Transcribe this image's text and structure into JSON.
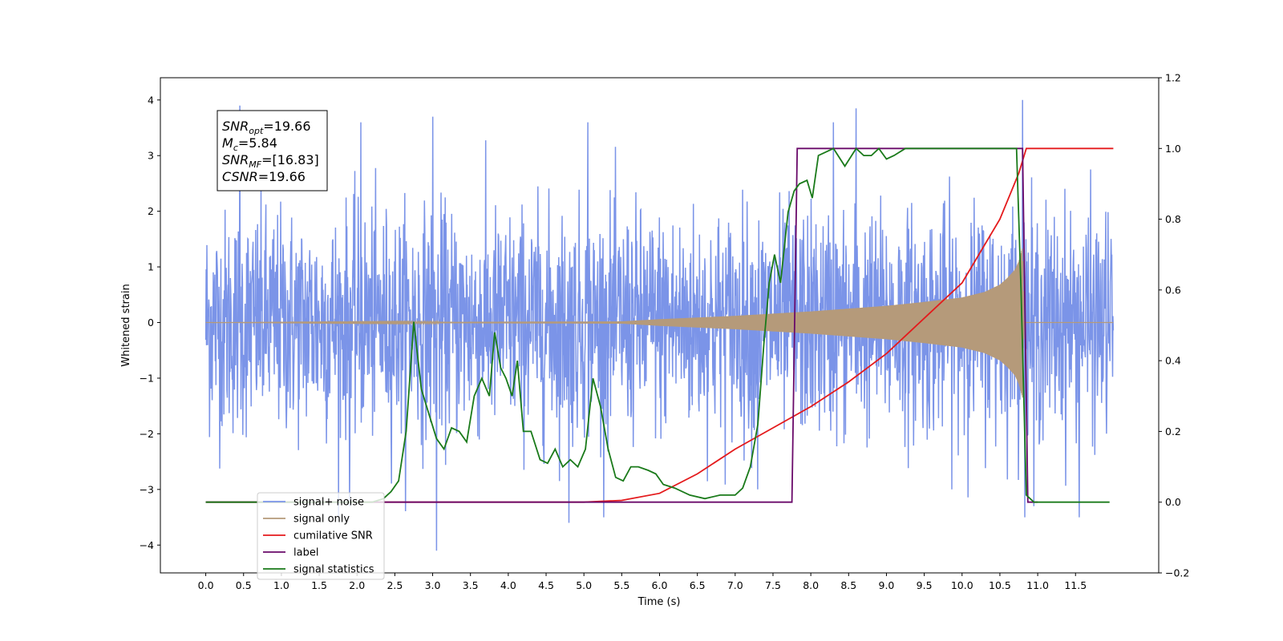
{
  "chart_data": {
    "type": "line",
    "title": "",
    "xlabel": "Time (s)",
    "ylabel": "Whitened strain",
    "xlim": [
      -0.6,
      12.6
    ],
    "ylim": [
      -4.5,
      4.4
    ],
    "y2lim": [
      -0.2,
      1.2
    ],
    "x_ticks": [
      "0.0",
      "0.5",
      "1.0",
      "1.5",
      "2.0",
      "2.5",
      "3.0",
      "3.5",
      "4.0",
      "4.5",
      "5.0",
      "5.5",
      "6.0",
      "6.5",
      "7.0",
      "7.5",
      "8.0",
      "8.5",
      "9.0",
      "9.5",
      "10.0",
      "10.5",
      "11.0",
      "11.5"
    ],
    "y_ticks": [
      "4",
      "3",
      "2",
      "1",
      "0",
      "−1",
      "−2",
      "−3",
      "−4"
    ],
    "y2_ticks": [
      "1.2",
      "1.0",
      "0.8",
      "0.6",
      "0.4",
      "0.2",
      "0.0",
      "−0.2"
    ],
    "grid": false,
    "legend_position": "lower-left",
    "annotation": {
      "lines": [
        {
          "main": "SNR",
          "sub": "opt",
          "rest": "=19.66"
        },
        {
          "main": "M",
          "sub": "c",
          "rest": "=5.84"
        },
        {
          "main": "SNR",
          "sub": "MF",
          "rest": "=[16.83]"
        },
        {
          "main": "CSNR",
          "sub": "",
          "rest": "=19.66"
        }
      ]
    },
    "series": [
      {
        "name": "signal+ noise",
        "axis": "left",
        "color": "#7b94e8",
        "style": "noise",
        "x_range": [
          0,
          12
        ],
        "noise_sigma": 1.0,
        "outliers": [
          [
            0.45,
            3.9
          ],
          [
            2.05,
            3.6
          ],
          [
            3.0,
            3.7
          ],
          [
            3.05,
            -4.1
          ],
          [
            4.8,
            -3.6
          ],
          [
            5.05,
            3.6
          ],
          [
            8.3,
            3.6
          ],
          [
            8.6,
            3.85
          ],
          [
            10.8,
            4.0
          ],
          [
            10.95,
            -3.3
          ],
          [
            11.55,
            -3.5
          ],
          [
            1.9,
            -3.3
          ],
          [
            7.3,
            -3.0
          ]
        ]
      },
      {
        "name": "signal only",
        "axis": "left",
        "color": "#b59a7a",
        "style": "chirp",
        "x_range": [
          0,
          12
        ],
        "envelope_t": [
          0,
          5.5,
          6.0,
          7.0,
          8.0,
          9.0,
          9.5,
          10.0,
          10.3,
          10.5,
          10.6,
          10.7,
          10.75,
          10.8,
          10.82,
          12.0
        ],
        "envelope_a": [
          0.0,
          0.02,
          0.06,
          0.12,
          0.2,
          0.3,
          0.37,
          0.45,
          0.55,
          0.68,
          0.8,
          0.95,
          1.1,
          1.35,
          0.0,
          0.0
        ]
      },
      {
        "name": "cumilative SNR",
        "axis": "right",
        "color": "#e41a1c",
        "x": [
          0.0,
          5.0,
          5.5,
          6.0,
          6.5,
          7.0,
          7.5,
          8.0,
          8.5,
          9.0,
          9.5,
          10.0,
          10.5,
          10.75,
          10.85,
          12.0
        ],
        "y": [
          0.0,
          0.0,
          0.005,
          0.025,
          0.08,
          0.15,
          0.21,
          0.27,
          0.34,
          0.42,
          0.52,
          0.62,
          0.8,
          0.93,
          1.0,
          1.0
        ]
      },
      {
        "name": "label",
        "axis": "right",
        "color": "#6a0a6a",
        "x": [
          0.0,
          7.75,
          7.82,
          10.8,
          10.87,
          11.0
        ],
        "y": [
          0.0,
          0.0,
          1.0,
          1.0,
          0.0,
          0.0
        ]
      },
      {
        "name": "signal statistics",
        "axis": "right",
        "color": "#1a7a1a",
        "x": [
          0.0,
          2.0,
          2.2,
          2.35,
          2.45,
          2.55,
          2.65,
          2.75,
          2.85,
          2.95,
          3.05,
          3.15,
          3.25,
          3.35,
          3.45,
          3.55,
          3.65,
          3.75,
          3.82,
          3.9,
          3.97,
          4.05,
          4.12,
          4.2,
          4.3,
          4.42,
          4.52,
          4.62,
          4.72,
          4.82,
          4.92,
          5.02,
          5.12,
          5.22,
          5.32,
          5.42,
          5.52,
          5.62,
          5.72,
          5.85,
          5.95,
          6.05,
          6.2,
          6.4,
          6.6,
          6.8,
          7.0,
          7.1,
          7.2,
          7.3,
          7.38,
          7.45,
          7.52,
          7.6,
          7.7,
          7.78,
          7.85,
          7.95,
          8.02,
          8.1,
          8.2,
          8.3,
          8.45,
          8.6,
          8.7,
          8.8,
          8.9,
          9.0,
          9.1,
          9.25,
          9.5,
          10.0,
          10.5,
          10.72,
          10.78,
          10.85,
          10.95,
          11.5,
          11.95
        ],
        "y": [
          0.0,
          0.0,
          0.0,
          0.01,
          0.03,
          0.06,
          0.2,
          0.51,
          0.32,
          0.25,
          0.18,
          0.15,
          0.21,
          0.2,
          0.17,
          0.3,
          0.35,
          0.3,
          0.48,
          0.38,
          0.35,
          0.3,
          0.4,
          0.2,
          0.2,
          0.12,
          0.11,
          0.15,
          0.1,
          0.12,
          0.1,
          0.15,
          0.35,
          0.27,
          0.15,
          0.07,
          0.06,
          0.1,
          0.1,
          0.09,
          0.08,
          0.05,
          0.04,
          0.02,
          0.01,
          0.02,
          0.02,
          0.04,
          0.1,
          0.22,
          0.45,
          0.62,
          0.7,
          0.62,
          0.82,
          0.88,
          0.9,
          0.91,
          0.86,
          0.98,
          0.99,
          1.0,
          0.95,
          1.0,
          0.98,
          0.98,
          1.0,
          0.97,
          0.98,
          1.0,
          1.0,
          1.0,
          1.0,
          1.0,
          0.6,
          0.02,
          0.0,
          0.0,
          0.0
        ]
      }
    ]
  }
}
